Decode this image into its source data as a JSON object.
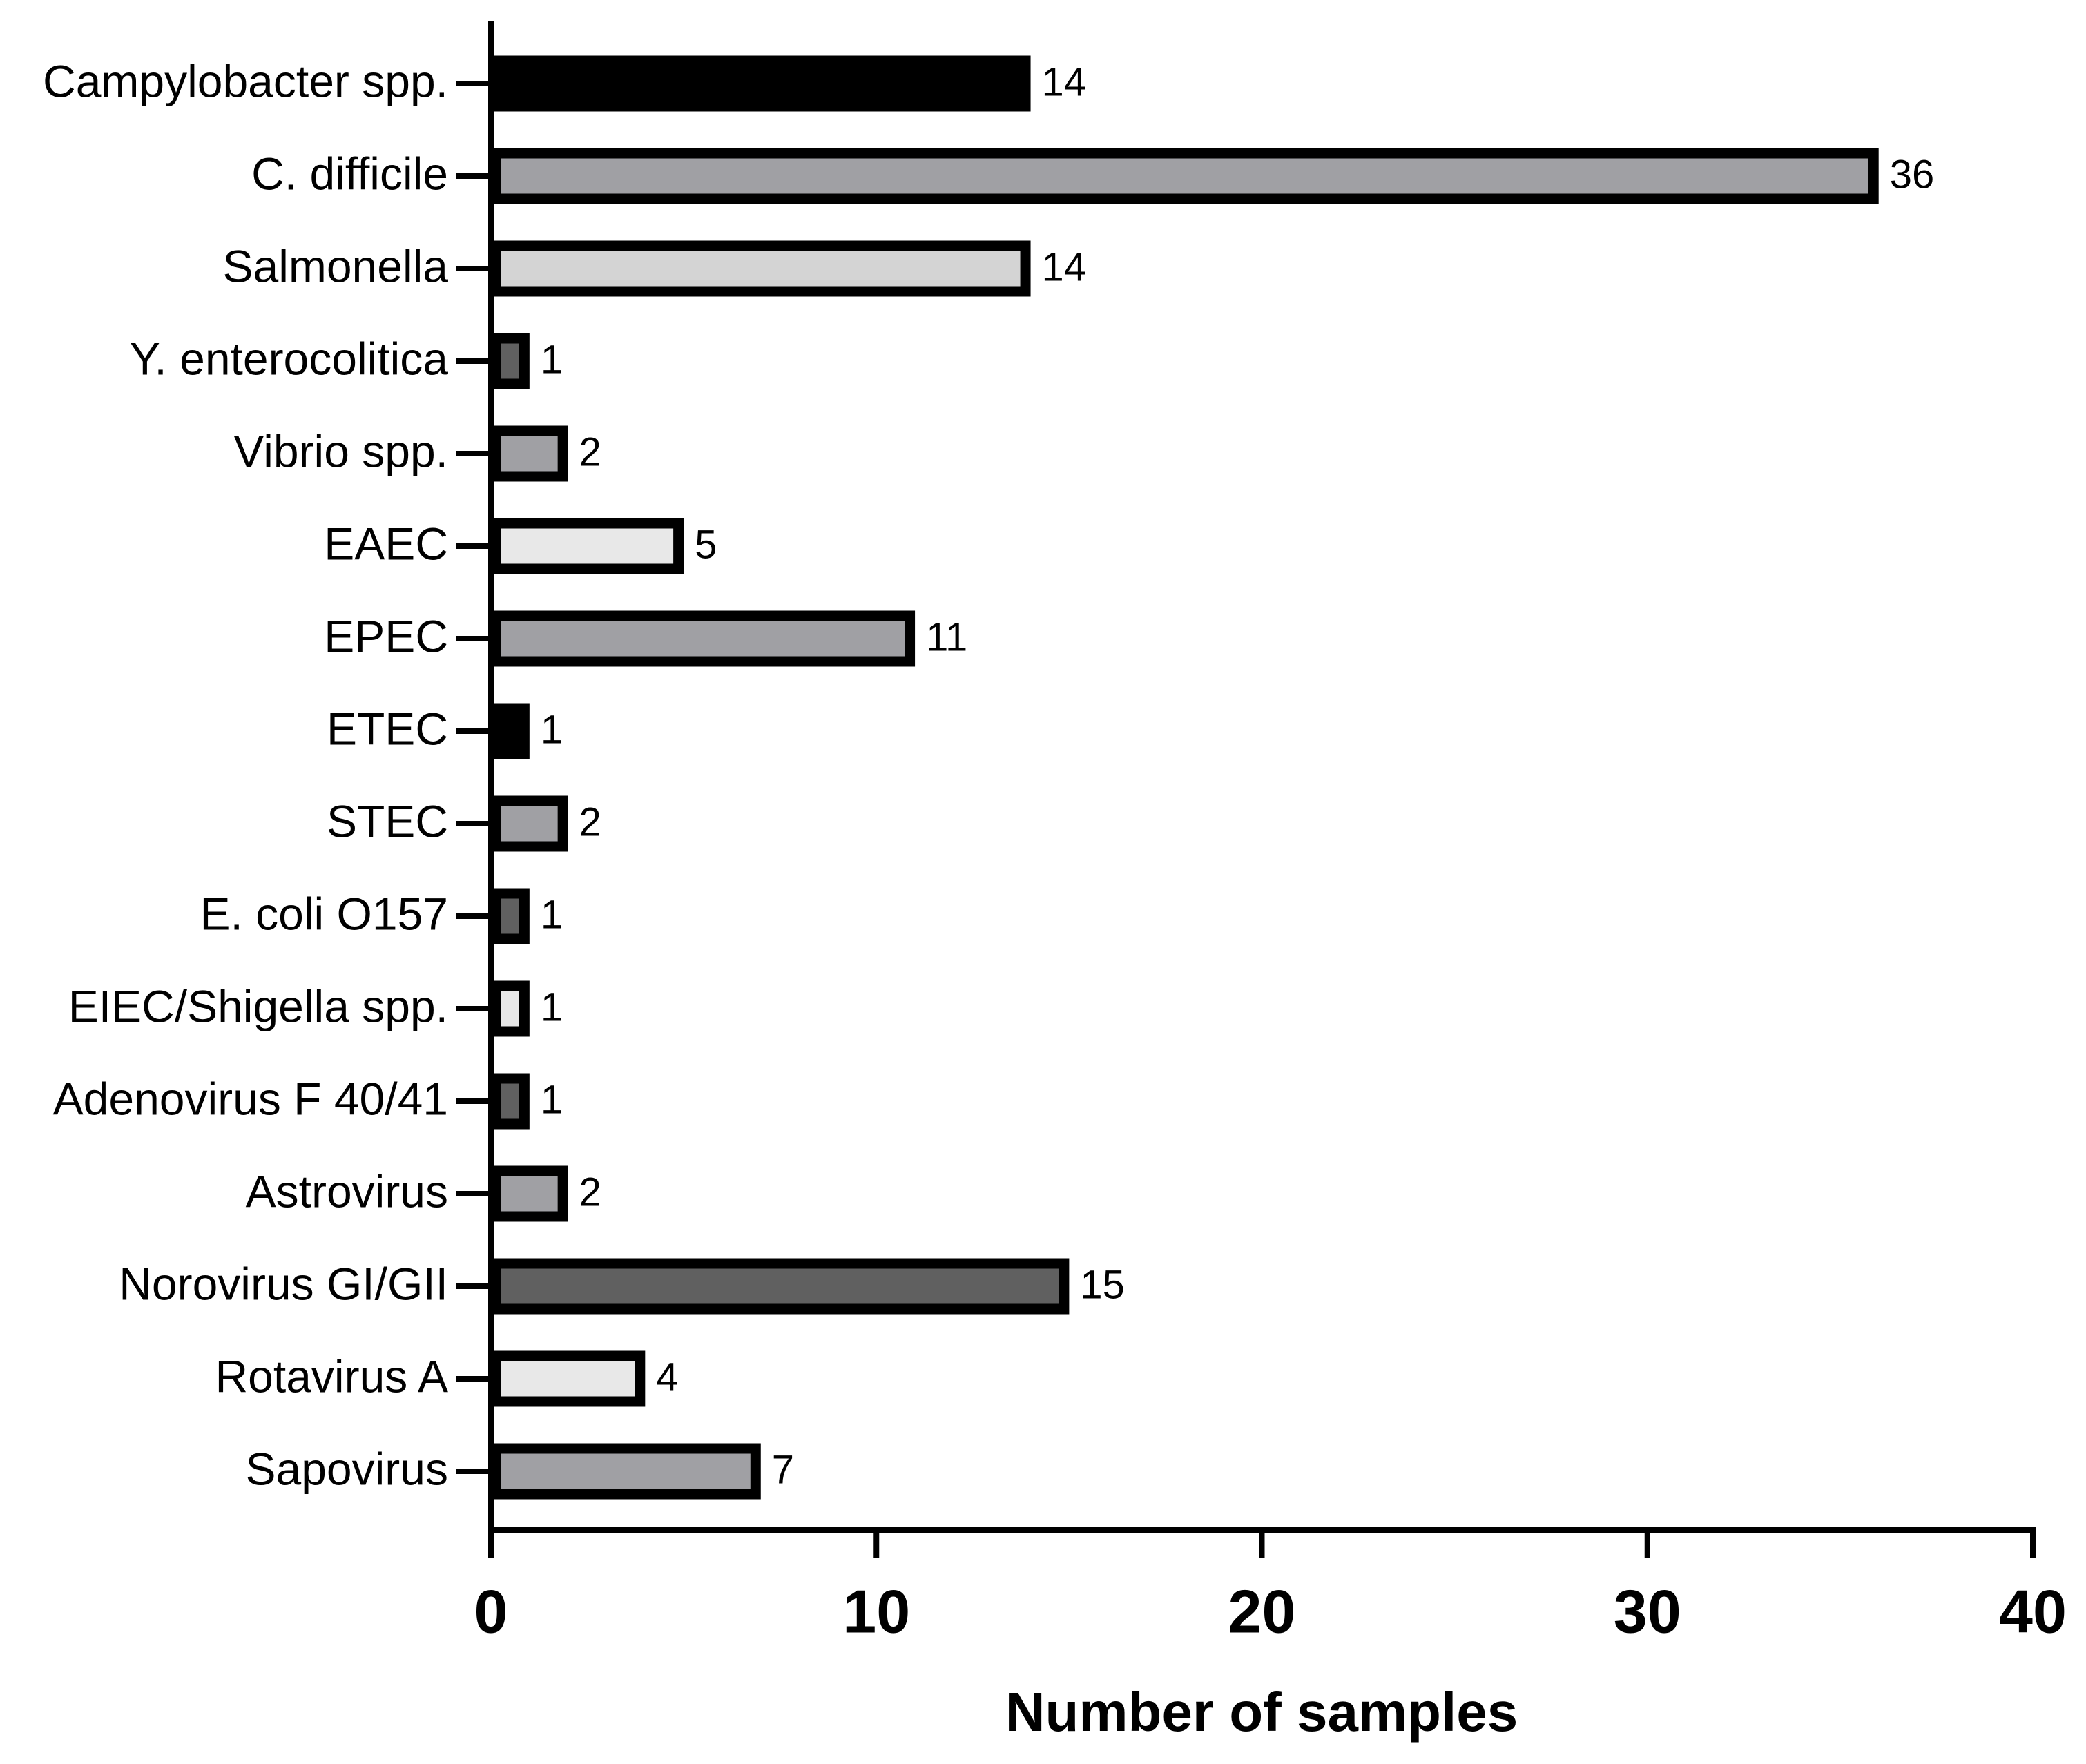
{
  "chart_data": {
    "type": "hbar",
    "x_label": "Number of samples",
    "categories": [
      "Campylobacter spp.",
      "C. difficile",
      "Salmonella",
      "Y. enterocolitica",
      "Vibrio spp.",
      "EAEC",
      "EPEC",
      "ETEC",
      "STEC",
      "E. coli O157",
      "EIEC/Shigella spp.",
      "Adenovirus F 40/41",
      "Astrovirus",
      "Norovirus GI/GII",
      "Rotavirus A",
      "Sapovirus"
    ],
    "values": [
      14,
      36,
      14,
      1,
      2,
      5,
      11,
      1,
      2,
      1,
      1,
      1,
      2,
      15,
      4,
      7
    ],
    "colors": [
      "#000000",
      "#a0a0a4",
      "#d4d4d4",
      "#606060",
      "#a0a0a4",
      "#e8e8e8",
      "#a0a0a4",
      "#000000",
      "#a0a0a4",
      "#606060",
      "#e8e8e8",
      "#606060",
      "#a0a0a4",
      "#606060",
      "#e8e8e8",
      "#a0a0a4"
    ],
    "xlim": [
      0,
      40
    ],
    "xticks": [
      0,
      10,
      20,
      30,
      40
    ]
  }
}
